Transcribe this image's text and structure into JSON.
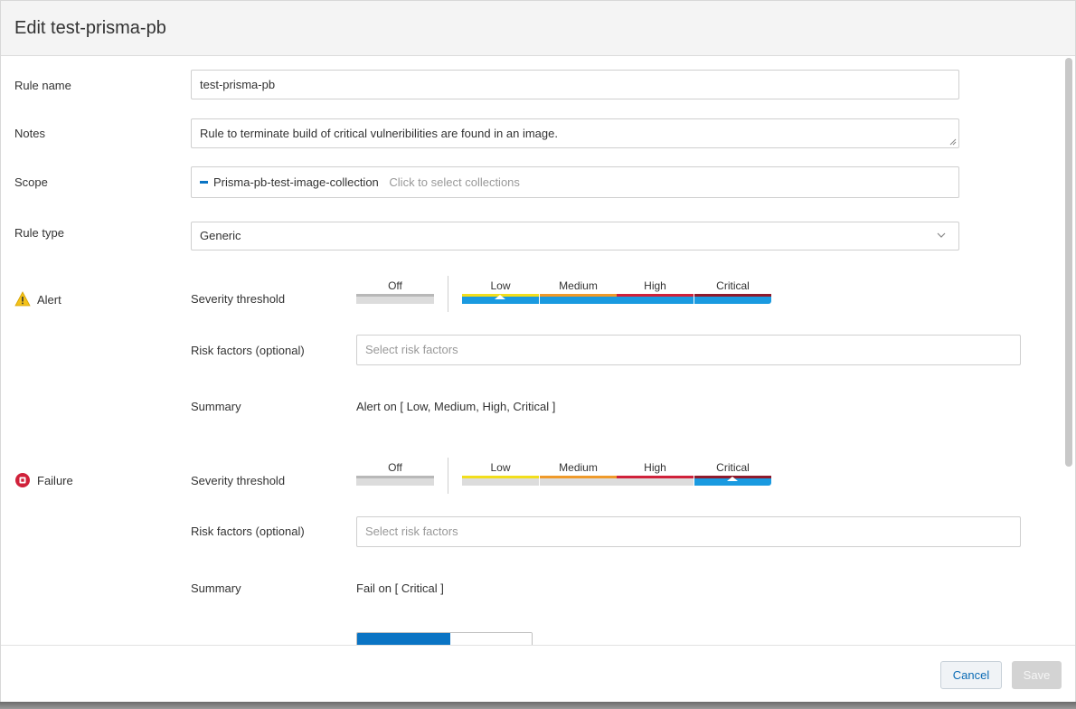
{
  "dialog": {
    "title": "Edit test-prisma-pb"
  },
  "form": {
    "rule_name": {
      "label": "Rule name",
      "value": "test-prisma-pb"
    },
    "notes": {
      "label": "Notes",
      "value": "Rule to terminate build of critical vulneribilities are found in an image."
    },
    "scope": {
      "label": "Scope",
      "chip": "Prisma-pb-test-image-collection",
      "placeholder": "Click to select collections"
    },
    "rule_type": {
      "label": "Rule type",
      "value": "Generic"
    }
  },
  "alert": {
    "label": "Alert",
    "icon": "warning-icon",
    "severity_label": "Severity threshold",
    "levels": {
      "off": "Off",
      "low": "Low",
      "medium": "Medium",
      "high": "High",
      "critical": "Critical"
    },
    "selected_from": "Low",
    "risk_label": "Risk factors (optional)",
    "risk_placeholder": "Select risk factors",
    "summary_label": "Summary",
    "summary_value": "Alert on [ Low, Medium, High, Critical ]"
  },
  "failure": {
    "label": "Failure",
    "icon": "stop-icon",
    "severity_label": "Severity threshold",
    "levels": {
      "off": "Off",
      "low": "Low",
      "medium": "Medium",
      "high": "High",
      "critical": "Critical"
    },
    "selected_from": "Critical",
    "risk_label": "Risk factors (optional)",
    "risk_placeholder": "Select risk factors",
    "summary_label": "Summary",
    "summary_value": "Fail on [ Critical ]"
  },
  "colors": {
    "low": "#f2de1c",
    "medium": "#ef9a2a",
    "high": "#d0213a",
    "critical": "#8e1a2c",
    "active_track": "#1a9ae0",
    "inactive_track": "#dcdcdc",
    "accent": "#0a74c4"
  },
  "footer": {
    "cancel_label": "Cancel",
    "save_label": "Save"
  }
}
